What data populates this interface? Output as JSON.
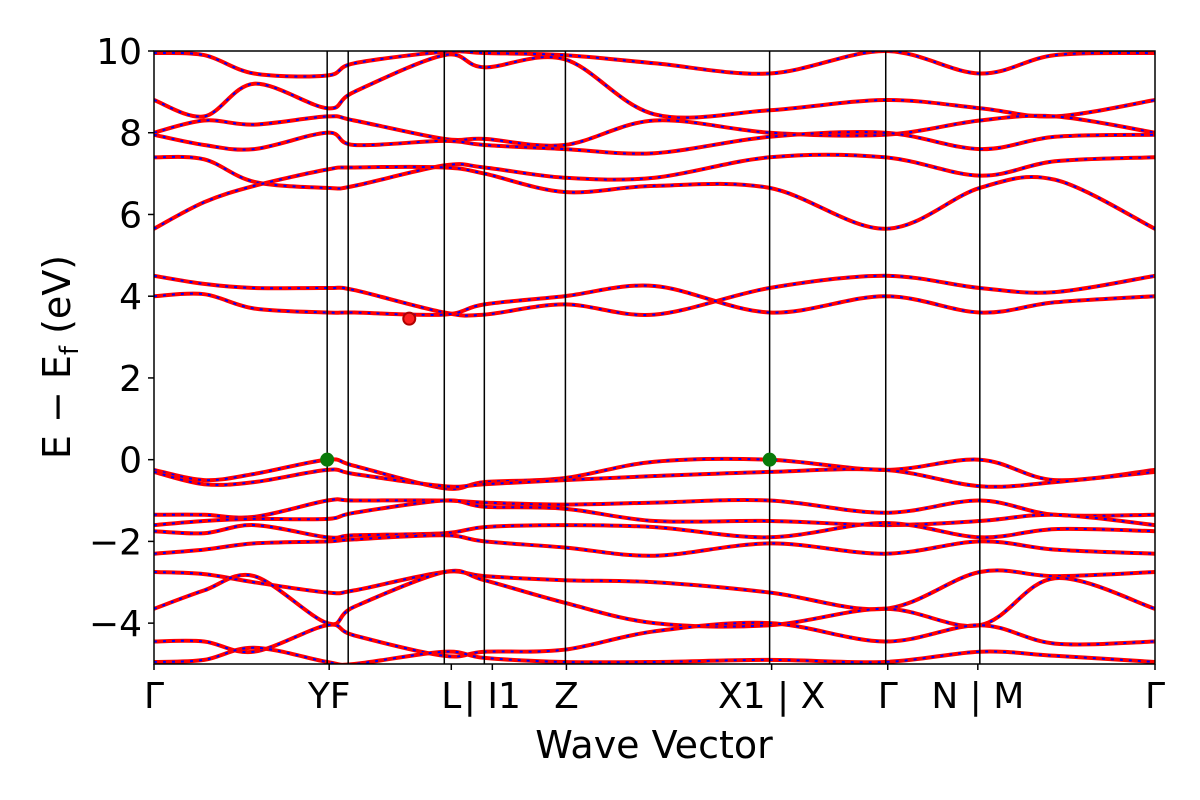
{
  "chart_data": {
    "type": "line",
    "title": "",
    "xlabel": "Wave Vector",
    "ylabel": "E − E_f (eV)",
    "ylabel_parts": {
      "main": "E − E",
      "sub": "f",
      "tail": " (eV)"
    },
    "ylim": [
      -5,
      10
    ],
    "yticks": [
      {
        "value": 10,
        "label": "10"
      },
      {
        "value": 8,
        "label": "8"
      },
      {
        "value": 6,
        "label": "6"
      },
      {
        "value": 4,
        "label": "4"
      },
      {
        "value": 2,
        "label": "2"
      },
      {
        "value": 0,
        "label": "0"
      },
      {
        "value": -2,
        "label": "−2"
      },
      {
        "value": -4,
        "label": "−4"
      }
    ],
    "kpath_ticks": [
      {
        "k": 0.0,
        "label": "Γ"
      },
      {
        "k": 0.175,
        "label": "YF"
      },
      {
        "k": 0.297,
        "label": "L"
      },
      {
        "k": 0.338,
        "label": "| I1"
      },
      {
        "k": 0.412,
        "label": "Z"
      },
      {
        "k": 0.617,
        "label": "X1 | X"
      },
      {
        "k": 0.733,
        "label": "Γ"
      },
      {
        "k": 0.823,
        "label": "N | M"
      },
      {
        "k": 1.0,
        "label": "Γ"
      }
    ],
    "kpath_lines": [
      0.173,
      0.194,
      0.29,
      0.33,
      0.411,
      0.615,
      0.731,
      0.825
    ],
    "series_style": {
      "line_color": "#ff0000",
      "dash_color": "#0000ff"
    },
    "bands": [
      {
        "k": [
          0,
          0.05,
          0.1,
          0.173,
          0.2,
          0.29,
          0.33,
          0.41,
          0.5,
          0.615,
          0.73,
          0.825,
          0.9,
          1.0
        ],
        "E": [
          9.95,
          9.9,
          9.45,
          9.4,
          9.7,
          9.98,
          9.95,
          9.9,
          9.7,
          9.45,
          10.0,
          9.45,
          9.9,
          9.95
        ]
      },
      {
        "k": [
          0,
          0.05,
          0.1,
          0.173,
          0.2,
          0.29,
          0.33,
          0.41,
          0.5,
          0.615,
          0.73,
          0.825,
          0.9,
          1.0
        ],
        "E": [
          8.8,
          8.4,
          9.2,
          8.6,
          9.0,
          9.9,
          9.6,
          9.8,
          8.45,
          8.55,
          8.8,
          8.6,
          8.4,
          8.8
        ]
      },
      {
        "k": [
          0,
          0.05,
          0.1,
          0.173,
          0.2,
          0.29,
          0.33,
          0.41,
          0.5,
          0.615,
          0.73,
          0.825,
          0.9,
          1.0
        ],
        "E": [
          8.0,
          8.3,
          8.2,
          8.4,
          8.3,
          7.85,
          7.85,
          7.7,
          8.3,
          8.0,
          7.95,
          8.3,
          8.4,
          8.0
        ]
      },
      {
        "k": [
          0,
          0.05,
          0.1,
          0.173,
          0.2,
          0.29,
          0.33,
          0.41,
          0.5,
          0.615,
          0.73,
          0.825,
          0.9,
          1.0
        ],
        "E": [
          7.95,
          7.7,
          7.6,
          8.0,
          7.7,
          7.8,
          7.7,
          7.6,
          7.5,
          7.9,
          8.0,
          7.6,
          7.9,
          7.95
        ]
      },
      {
        "k": [
          0,
          0.05,
          0.1,
          0.173,
          0.2,
          0.29,
          0.33,
          0.41,
          0.5,
          0.615,
          0.73,
          0.825,
          0.9,
          1.0
        ],
        "E": [
          7.4,
          7.35,
          6.8,
          6.65,
          6.7,
          7.2,
          7.15,
          6.9,
          6.9,
          7.4,
          7.4,
          6.95,
          7.3,
          7.4
        ]
      },
      {
        "k": [
          0,
          0.05,
          0.1,
          0.173,
          0.2,
          0.29,
          0.33,
          0.41,
          0.5,
          0.615,
          0.73,
          0.825,
          0.9,
          1.0
        ],
        "E": [
          5.65,
          6.3,
          6.7,
          7.1,
          7.15,
          7.15,
          7.0,
          6.55,
          6.7,
          6.65,
          5.65,
          6.65,
          6.85,
          5.65
        ]
      },
      {
        "k": [
          0,
          0.05,
          0.1,
          0.173,
          0.2,
          0.29,
          0.33,
          0.41,
          0.5,
          0.615,
          0.73,
          0.825,
          0.9,
          1.0
        ],
        "E": [
          4.5,
          4.3,
          4.2,
          4.2,
          4.15,
          3.6,
          3.55,
          3.8,
          3.55,
          4.2,
          4.5,
          4.2,
          4.1,
          4.5
        ]
      },
      {
        "k": [
          0,
          0.05,
          0.1,
          0.173,
          0.2,
          0.29,
          0.33,
          0.41,
          0.5,
          0.615,
          0.73,
          0.825,
          0.9,
          1.0
        ],
        "E": [
          4.0,
          4.05,
          3.7,
          3.6,
          3.6,
          3.55,
          3.8,
          4.0,
          4.25,
          3.6,
          4.0,
          3.6,
          3.85,
          4.0
        ]
      },
      {
        "k": [
          0,
          0.05,
          0.1,
          0.173,
          0.2,
          0.29,
          0.33,
          0.41,
          0.5,
          0.615,
          0.73,
          0.825,
          0.9,
          1.0
        ],
        "E": [
          -0.25,
          -0.5,
          -0.35,
          0.0,
          -0.15,
          -0.7,
          -0.55,
          -0.45,
          -0.05,
          0.0,
          -0.25,
          0.0,
          -0.5,
          -0.25
        ]
      },
      {
        "k": [
          0,
          0.05,
          0.1,
          0.173,
          0.2,
          0.29,
          0.33,
          0.41,
          0.5,
          0.615,
          0.73,
          0.825,
          0.9,
          1.0
        ],
        "E": [
          -0.3,
          -0.6,
          -0.55,
          -0.25,
          -0.35,
          -0.65,
          -0.6,
          -0.5,
          -0.4,
          -0.3,
          -0.25,
          -0.65,
          -0.55,
          -0.3
        ]
      },
      {
        "k": [
          0,
          0.05,
          0.1,
          0.173,
          0.2,
          0.29,
          0.33,
          0.41,
          0.5,
          0.615,
          0.73,
          0.825,
          0.9,
          1.0
        ],
        "E": [
          -1.35,
          -1.35,
          -1.4,
          -1.0,
          -1.0,
          -1.0,
          -1.05,
          -1.1,
          -1.05,
          -1.0,
          -1.3,
          -1.0,
          -1.35,
          -1.35
        ]
      },
      {
        "k": [
          0,
          0.05,
          0.1,
          0.173,
          0.2,
          0.29,
          0.33,
          0.41,
          0.5,
          0.615,
          0.73,
          0.825,
          0.9,
          1.0
        ],
        "E": [
          -1.6,
          -1.5,
          -1.45,
          -1.45,
          -1.3,
          -1.0,
          -1.15,
          -1.2,
          -1.5,
          -1.5,
          -1.6,
          -1.5,
          -1.35,
          -1.6
        ]
      },
      {
        "k": [
          0,
          0.05,
          0.1,
          0.173,
          0.2,
          0.29,
          0.33,
          0.41,
          0.5,
          0.615,
          0.73,
          0.825,
          0.9,
          1.0
        ],
        "E": [
          -1.75,
          -1.8,
          -1.6,
          -1.9,
          -1.85,
          -1.8,
          -1.65,
          -1.6,
          -1.65,
          -1.9,
          -1.55,
          -1.9,
          -1.7,
          -1.75
        ]
      },
      {
        "k": [
          0,
          0.05,
          0.1,
          0.173,
          0.2,
          0.29,
          0.33,
          0.41,
          0.5,
          0.615,
          0.73,
          0.825,
          0.9,
          1.0
        ],
        "E": [
          -2.3,
          -2.2,
          -2.05,
          -2.0,
          -1.95,
          -1.85,
          -2.0,
          -2.15,
          -2.35,
          -2.05,
          -2.3,
          -2.0,
          -2.2,
          -2.3
        ]
      },
      {
        "k": [
          0,
          0.05,
          0.1,
          0.173,
          0.2,
          0.29,
          0.33,
          0.41,
          0.5,
          0.615,
          0.73,
          0.825,
          0.9,
          1.0
        ],
        "E": [
          -2.75,
          -2.8,
          -3.0,
          -3.25,
          -3.2,
          -2.75,
          -2.85,
          -2.95,
          -3.0,
          -3.25,
          -3.65,
          -2.75,
          -2.85,
          -2.75
        ]
      },
      {
        "k": [
          0,
          0.05,
          0.1,
          0.173,
          0.2,
          0.29,
          0.33,
          0.41,
          0.5,
          0.615,
          0.73,
          0.825,
          0.9,
          1.0
        ],
        "E": [
          -3.65,
          -3.2,
          -2.85,
          -4.0,
          -3.6,
          -2.75,
          -2.95,
          -3.5,
          -4.0,
          -4.05,
          -3.65,
          -4.05,
          -2.9,
          -3.65
        ]
      },
      {
        "k": [
          0,
          0.05,
          0.1,
          0.173,
          0.2,
          0.29,
          0.33,
          0.41,
          0.5,
          0.615,
          0.73,
          0.825,
          0.9,
          1.0
        ],
        "E": [
          -4.45,
          -4.45,
          -4.7,
          -4.05,
          -4.3,
          -4.8,
          -4.7,
          -4.65,
          -4.2,
          -4.0,
          -4.45,
          -4.05,
          -4.5,
          -4.45
        ]
      },
      {
        "k": [
          0,
          0.05,
          0.1,
          0.173,
          0.2,
          0.29,
          0.33,
          0.41,
          0.5,
          0.615,
          0.73,
          0.825,
          0.9,
          1.0
        ],
        "E": [
          -4.95,
          -4.9,
          -4.6,
          -4.95,
          -5.0,
          -4.7,
          -4.85,
          -4.95,
          -4.95,
          -4.9,
          -4.95,
          -4.7,
          -4.8,
          -4.95
        ]
      }
    ],
    "markers": [
      {
        "k": 0.173,
        "E": 0.0,
        "color": "#0a7a0a",
        "edge": "#0a7a0a"
      },
      {
        "k": 0.615,
        "E": 0.0,
        "color": "#0a7a0a",
        "edge": "#0a7a0a"
      },
      {
        "k": 0.255,
        "E": 3.45,
        "color": "#ff2020",
        "edge": "#b00000"
      }
    ],
    "grid": false
  }
}
